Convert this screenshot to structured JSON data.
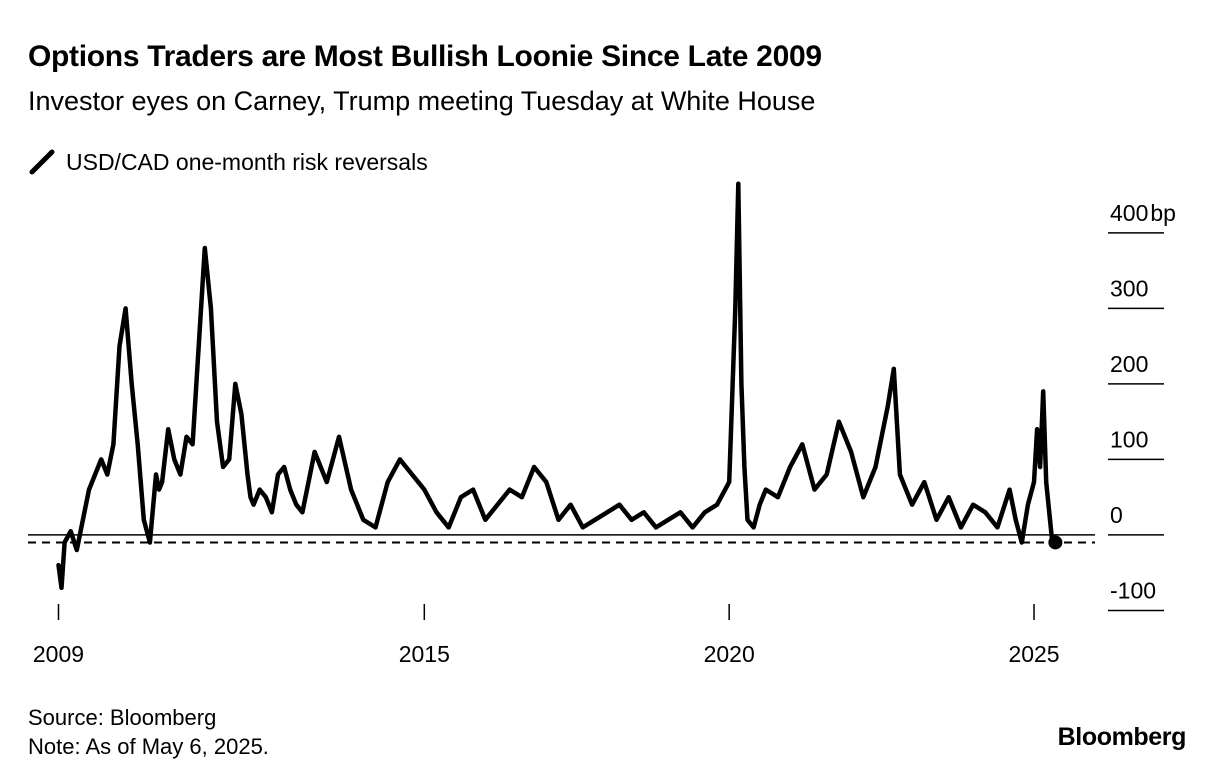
{
  "title": "Options Traders are Most Bullish Loonie Since Late 2009",
  "subtitle": "Investor eyes on Carney, Trump meeting Tuesday at White House",
  "footer": {
    "source": "Source: Bloomberg",
    "note": "Note: As of May 6, 2025."
  },
  "brand": "Bloomberg",
  "chart_data": {
    "type": "line",
    "series": [
      {
        "name": "USD/CAD one-month risk reversals",
        "color": "#000000",
        "x": [
          2009.0,
          2009.05,
          2009.1,
          2009.2,
          2009.3,
          2009.4,
          2009.5,
          2009.6,
          2009.7,
          2009.8,
          2009.9,
          2010.0,
          2010.1,
          2010.2,
          2010.3,
          2010.4,
          2010.5,
          2010.6,
          2010.65,
          2010.7,
          2010.8,
          2010.9,
          2011.0,
          2011.1,
          2011.2,
          2011.3,
          2011.4,
          2011.5,
          2011.6,
          2011.7,
          2011.8,
          2011.9,
          2012.0,
          2012.1,
          2012.15,
          2012.2,
          2012.3,
          2012.4,
          2012.5,
          2012.6,
          2012.7,
          2012.8,
          2012.9,
          2013.0,
          2013.2,
          2013.4,
          2013.6,
          2013.8,
          2014.0,
          2014.2,
          2014.4,
          2014.6,
          2014.8,
          2015.0,
          2015.2,
          2015.4,
          2015.6,
          2015.8,
          2016.0,
          2016.2,
          2016.4,
          2016.6,
          2016.8,
          2017.0,
          2017.2,
          2017.4,
          2017.6,
          2017.8,
          2018.0,
          2018.2,
          2018.4,
          2018.6,
          2018.8,
          2019.0,
          2019.2,
          2019.4,
          2019.6,
          2019.8,
          2020.0,
          2020.1,
          2020.15,
          2020.2,
          2020.25,
          2020.3,
          2020.4,
          2020.5,
          2020.6,
          2020.8,
          2021.0,
          2021.2,
          2021.4,
          2021.6,
          2021.8,
          2022.0,
          2022.2,
          2022.4,
          2022.6,
          2022.7,
          2022.8,
          2023.0,
          2023.2,
          2023.4,
          2023.6,
          2023.8,
          2024.0,
          2024.2,
          2024.4,
          2024.6,
          2024.7,
          2024.8,
          2024.9,
          2025.0,
          2025.05,
          2025.1,
          2025.15,
          2025.2,
          2025.3,
          2025.35
        ],
        "values": [
          -40,
          -70,
          -10,
          5,
          -20,
          20,
          60,
          80,
          100,
          80,
          120,
          250,
          300,
          200,
          120,
          20,
          -10,
          80,
          60,
          70,
          140,
          100,
          80,
          130,
          120,
          250,
          380,
          300,
          150,
          90,
          100,
          200,
          160,
          80,
          50,
          40,
          60,
          50,
          30,
          80,
          90,
          60,
          40,
          30,
          110,
          70,
          130,
          60,
          20,
          10,
          70,
          100,
          80,
          60,
          30,
          10,
          50,
          60,
          20,
          40,
          60,
          50,
          90,
          70,
          20,
          40,
          10,
          20,
          30,
          40,
          20,
          30,
          10,
          20,
          30,
          10,
          30,
          40,
          70,
          300,
          465,
          200,
          90,
          20,
          10,
          40,
          60,
          50,
          90,
          120,
          60,
          80,
          150,
          110,
          50,
          90,
          170,
          220,
          80,
          40,
          70,
          20,
          50,
          10,
          40,
          30,
          10,
          60,
          20,
          -10,
          40,
          70,
          140,
          90,
          190,
          70,
          -10,
          -10
        ]
      }
    ],
    "yticks": [
      -100,
      0,
      100,
      200,
      300,
      400
    ],
    "ytick_labels": [
      "-100",
      "0",
      "100",
      "200",
      "300",
      "400"
    ],
    "yunit": "bp",
    "ylim": [
      -110,
      470
    ],
    "xticks": [
      2009,
      2015,
      2020,
      2025
    ],
    "xtick_labels": [
      "2009",
      "2015",
      "2020",
      "2025"
    ],
    "xlim": [
      2008.5,
      2026.0
    ],
    "reference_line": -10,
    "reference_style": "dashed",
    "zero_line": 0,
    "last_point_marker": true,
    "grid": "horizontal ticks at right",
    "legend_position": "top-left"
  }
}
